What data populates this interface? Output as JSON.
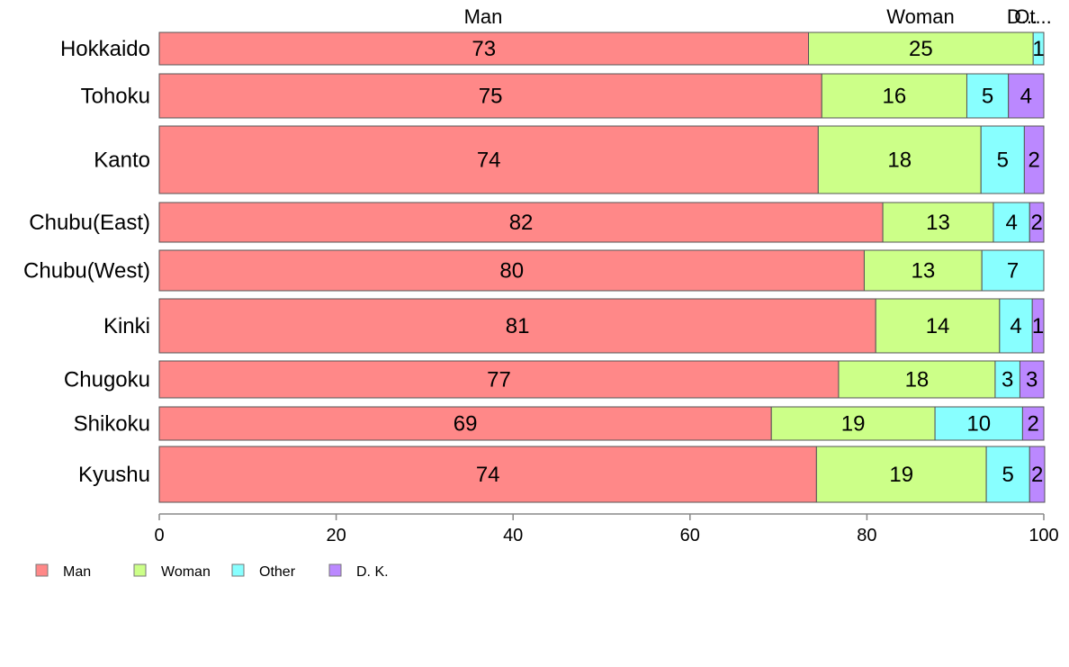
{
  "chart_data": {
    "type": "bar",
    "orientation": "horizontal",
    "stacked": true,
    "categories": [
      "Hokkaido",
      "Tohoku",
      "Kanto",
      "Chubu(East)",
      "Chubu(West)",
      "Kinki",
      "Chugoku",
      "Shikoku",
      "Kyushu"
    ],
    "series": [
      {
        "name": "Man",
        "color": "#ff8888",
        "values": [
          73.4,
          74.9,
          74.5,
          81.8,
          79.7,
          81.0,
          76.8,
          69.2,
          74.3
        ],
        "labels": [
          "73",
          "75",
          "74",
          "82",
          "80",
          "81",
          "77",
          "69",
          "74"
        ]
      },
      {
        "name": "Woman",
        "color": "#ccff88",
        "values": [
          25.4,
          16.4,
          18.4,
          12.5,
          13.3,
          14.0,
          17.7,
          18.5,
          19.2
        ],
        "labels": [
          "25",
          "16",
          "18",
          "13",
          "13",
          "14",
          "18",
          "19",
          "19"
        ]
      },
      {
        "name": "Other",
        "color": "#88ffff",
        "values": [
          1.2,
          4.7,
          4.9,
          4.1,
          7.0,
          3.7,
          2.8,
          9.9,
          4.9
        ],
        "labels": [
          "1",
          "5",
          "5",
          "4",
          "7",
          "4",
          "3",
          "10",
          "5"
        ]
      },
      {
        "name": "D. K.",
        "color": "#bb88ff",
        "values": [
          0.0,
          4.0,
          2.2,
          1.6,
          0.0,
          1.3,
          2.7,
          2.4,
          1.7
        ],
        "labels": [
          "",
          "4",
          "2",
          "2",
          "",
          "1",
          "3",
          "2",
          "2"
        ]
      }
    ],
    "top_labels": [
      "Man",
      "Woman",
      "Ot...",
      "D..."
    ],
    "xlim": [
      0,
      100
    ],
    "xticks": [
      "0",
      "20",
      "40",
      "60",
      "80",
      "100"
    ],
    "grid": false,
    "legend_position": "bottom-left"
  }
}
